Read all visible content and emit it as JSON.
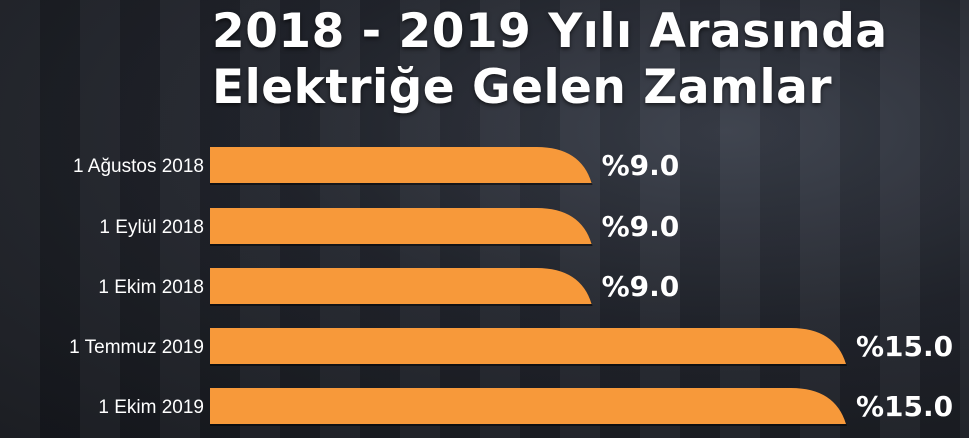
{
  "chart_data": {
    "type": "bar",
    "orientation": "horizontal",
    "title": "2018 - 2019 Yılı Arasında Elektriğe Gelen Zamlar",
    "title_lines": [
      "2018 - 2019 Yılı Arasında",
      "Elektriğe Gelen Zamlar"
    ],
    "categories": [
      "1 Ağustos 2018",
      "1 Eylül 2018",
      "1 Ekim 2018",
      "1 Temmuz 2019",
      "1 Ekim 2019"
    ],
    "values": [
      9.0,
      9.0,
      9.0,
      15.0,
      15.0
    ],
    "data_labels": [
      "%9.0",
      "%9.0",
      "%9.0",
      "%15.0",
      "%15.0"
    ],
    "xlim": [
      0,
      15
    ],
    "grid": false,
    "bar_color": "#F7993A"
  }
}
